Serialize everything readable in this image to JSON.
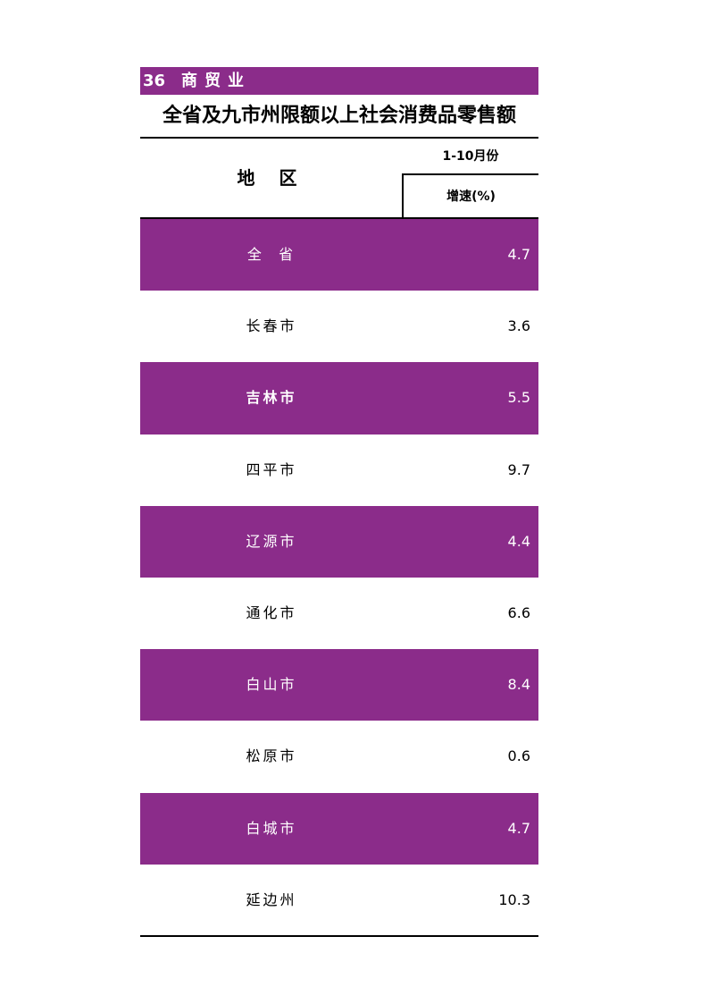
{
  "section": {
    "number": "36",
    "title": "商贸业"
  },
  "title": "全省及九市州限额以上社会消费品零售额",
  "header": {
    "region": "地 区",
    "period": "1-10月份",
    "metric": "增速(%)"
  },
  "colors": {
    "accent": "#8b2c8a"
  },
  "rows": [
    {
      "name": "全  省",
      "value": "4.7"
    },
    {
      "name": "长春市",
      "value": "3.6"
    },
    {
      "name": "吉林市",
      "value": "5.5"
    },
    {
      "name": "四平市",
      "value": "9.7"
    },
    {
      "name": "辽源市",
      "value": "4.4"
    },
    {
      "name": "通化市",
      "value": "6.6"
    },
    {
      "name": "白山市",
      "value": "8.4"
    },
    {
      "name": "松原市",
      "value": "0.6"
    },
    {
      "name": "白城市",
      "value": "4.7"
    },
    {
      "name": "延边州",
      "value": "10.3"
    }
  ]
}
